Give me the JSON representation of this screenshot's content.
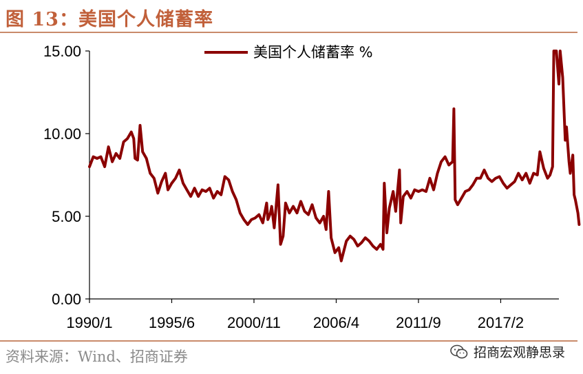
{
  "header": {
    "title": "图 13：美国个人储蓄率"
  },
  "footer": {
    "source": "资料来源：Wind、招商证券",
    "watermark": "招商宏观静思录",
    "watermark_icon": "wechat-icon"
  },
  "chart_data": {
    "type": "line",
    "title": "",
    "xlabel": "",
    "ylabel": "",
    "ylim": [
      0,
      15
    ],
    "xlim": [
      "1990-01",
      "2020-12"
    ],
    "y_ticks": [
      "0.00",
      "5.00",
      "10.00",
      "15.00"
    ],
    "x_ticks": [
      {
        "label": "1990/1",
        "date": "1990-01"
      },
      {
        "label": "1995/6",
        "date": "1995-06"
      },
      {
        "label": "2000/11",
        "date": "2000-11"
      },
      {
        "label": "2006/4",
        "date": "2006-04"
      },
      {
        "label": "2011/9",
        "date": "2011-09"
      },
      {
        "label": "2017/2",
        "date": "2017-02"
      }
    ],
    "grid": false,
    "legend_position": "top",
    "series": [
      {
        "name": "美国个人储蓄率 %",
        "color": "#8b0000",
        "points": [
          [
            "1990-01",
            8.0
          ],
          [
            "1990-04",
            8.6
          ],
          [
            "1990-07",
            8.5
          ],
          [
            "1990-10",
            8.6
          ],
          [
            "1991-01",
            8.0
          ],
          [
            "1991-04",
            9.2
          ],
          [
            "1991-07",
            8.3
          ],
          [
            "1991-10",
            8.8
          ],
          [
            "1992-01",
            8.5
          ],
          [
            "1992-04",
            9.5
          ],
          [
            "1992-07",
            9.7
          ],
          [
            "1992-10",
            10.1
          ],
          [
            "1992-12",
            9.7
          ],
          [
            "1993-01",
            8.5
          ],
          [
            "1993-03",
            8.4
          ],
          [
            "1993-05",
            10.5
          ],
          [
            "1993-07",
            8.9
          ],
          [
            "1993-10",
            8.5
          ],
          [
            "1994-01",
            7.6
          ],
          [
            "1994-04",
            7.3
          ],
          [
            "1994-07",
            6.4
          ],
          [
            "1994-10",
            7.1
          ],
          [
            "1995-01",
            7.6
          ],
          [
            "1995-03",
            6.6
          ],
          [
            "1995-06",
            7.0
          ],
          [
            "1995-09",
            7.3
          ],
          [
            "1995-12",
            7.8
          ],
          [
            "1996-03",
            7.0
          ],
          [
            "1996-06",
            6.6
          ],
          [
            "1996-09",
            6.2
          ],
          [
            "1996-12",
            6.7
          ],
          [
            "1997-03",
            6.2
          ],
          [
            "1997-06",
            6.6
          ],
          [
            "1997-09",
            6.5
          ],
          [
            "1997-12",
            6.7
          ],
          [
            "1998-03",
            6.1
          ],
          [
            "1998-06",
            6.5
          ],
          [
            "1998-09",
            6.3
          ],
          [
            "1998-12",
            7.4
          ],
          [
            "1999-03",
            7.2
          ],
          [
            "1999-06",
            6.5
          ],
          [
            "1999-09",
            6.0
          ],
          [
            "1999-12",
            5.2
          ],
          [
            "2000-03",
            4.8
          ],
          [
            "2000-06",
            4.5
          ],
          [
            "2000-09",
            4.8
          ],
          [
            "2000-12",
            4.9
          ],
          [
            "2001-03",
            5.1
          ],
          [
            "2001-06",
            4.6
          ],
          [
            "2001-09",
            5.8
          ],
          [
            "2001-10",
            4.8
          ],
          [
            "2001-12",
            5.2
          ],
          [
            "2002-01",
            5.6
          ],
          [
            "2002-03",
            4.3
          ],
          [
            "2002-06",
            6.9
          ],
          [
            "2002-08",
            3.3
          ],
          [
            "2002-10",
            3.8
          ],
          [
            "2002-12",
            5.8
          ],
          [
            "2003-03",
            5.2
          ],
          [
            "2003-06",
            5.6
          ],
          [
            "2003-09",
            5.2
          ],
          [
            "2003-12",
            5.9
          ],
          [
            "2004-03",
            5.3
          ],
          [
            "2004-06",
            5.1
          ],
          [
            "2004-09",
            5.7
          ],
          [
            "2004-12",
            4.9
          ],
          [
            "2005-03",
            4.6
          ],
          [
            "2005-06",
            5.0
          ],
          [
            "2005-08",
            4.2
          ],
          [
            "2005-10",
            6.5
          ],
          [
            "2005-12",
            3.7
          ],
          [
            "2006-03",
            2.8
          ],
          [
            "2006-06",
            3.1
          ],
          [
            "2006-08",
            2.3
          ],
          [
            "2006-10",
            2.9
          ],
          [
            "2006-12",
            3.5
          ],
          [
            "2007-03",
            3.8
          ],
          [
            "2007-06",
            3.6
          ],
          [
            "2007-09",
            3.2
          ],
          [
            "2007-12",
            3.4
          ],
          [
            "2008-03",
            3.7
          ],
          [
            "2008-06",
            3.5
          ],
          [
            "2008-09",
            3.2
          ],
          [
            "2008-12",
            3.0
          ],
          [
            "2009-03",
            3.3
          ],
          [
            "2009-05",
            3.0
          ],
          [
            "2009-06",
            7.0
          ],
          [
            "2009-08",
            4.0
          ],
          [
            "2009-10",
            5.5
          ],
          [
            "2010-01",
            6.5
          ],
          [
            "2010-03",
            5.3
          ],
          [
            "2010-06",
            7.8
          ],
          [
            "2010-07",
            4.6
          ],
          [
            "2010-09",
            6.2
          ],
          [
            "2010-12",
            6.5
          ],
          [
            "2011-03",
            6.1
          ],
          [
            "2011-06",
            6.6
          ],
          [
            "2011-09",
            6.5
          ],
          [
            "2011-12",
            6.6
          ],
          [
            "2012-03",
            6.5
          ],
          [
            "2012-06",
            7.3
          ],
          [
            "2012-09",
            6.6
          ],
          [
            "2012-12",
            7.6
          ],
          [
            "2013-03",
            8.3
          ],
          [
            "2013-06",
            8.6
          ],
          [
            "2013-09",
            8.1
          ],
          [
            "2013-12",
            8.3
          ],
          [
            "2014-01",
            11.5
          ],
          [
            "2014-02",
            6.0
          ],
          [
            "2014-04",
            5.7
          ],
          [
            "2014-07",
            6.1
          ],
          [
            "2014-10",
            6.5
          ],
          [
            "2015-01",
            6.6
          ],
          [
            "2015-04",
            6.9
          ],
          [
            "2015-07",
            7.3
          ],
          [
            "2015-10",
            7.3
          ],
          [
            "2016-01",
            7.8
          ],
          [
            "2016-04",
            7.3
          ],
          [
            "2016-07",
            7.1
          ],
          [
            "2016-10",
            7.3
          ],
          [
            "2017-01",
            7.4
          ],
          [
            "2017-04",
            7.0
          ],
          [
            "2017-07",
            6.7
          ],
          [
            "2017-10",
            6.9
          ],
          [
            "2018-01",
            7.1
          ],
          [
            "2018-04",
            7.6
          ],
          [
            "2018-07",
            7.2
          ],
          [
            "2018-10",
            7.6
          ],
          [
            "2019-01",
            7.0
          ],
          [
            "2019-04",
            7.6
          ],
          [
            "2019-07",
            7.5
          ],
          [
            "2019-09",
            8.9
          ],
          [
            "2019-12",
            7.9
          ],
          [
            "2020-03",
            7.3
          ],
          [
            "2020-05",
            7.5
          ],
          [
            "2020-07",
            8.0
          ],
          [
            "2020-08",
            15.0
          ],
          [
            "2020-10",
            15.0
          ],
          [
            "2020-12",
            13.0
          ],
          [
            "2021-01",
            15.0
          ],
          [
            "2021-03",
            13.4
          ],
          [
            "2021-05",
            9.6
          ],
          [
            "2021-06",
            10.4
          ],
          [
            "2021-08",
            8.3
          ],
          [
            "2021-09",
            7.6
          ],
          [
            "2021-11",
            8.7
          ],
          [
            "2021-12",
            6.3
          ],
          [
            "2022-01",
            6.0
          ],
          [
            "2022-03",
            5.2
          ],
          [
            "2022-04",
            4.5
          ]
        ]
      }
    ]
  }
}
